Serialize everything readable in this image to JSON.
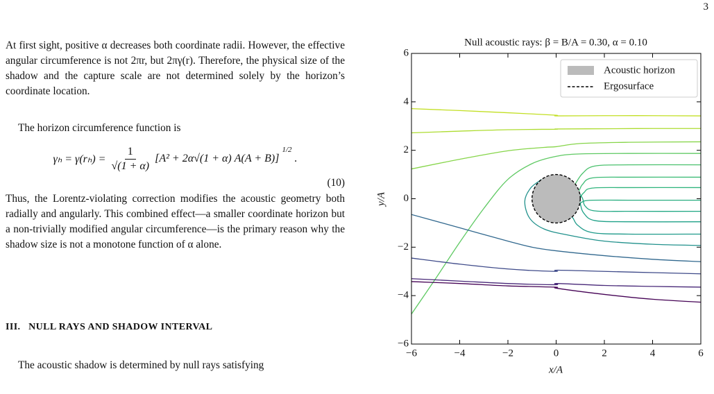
{
  "page_number": "3",
  "body": {
    "p1": "At first sight, positive α decreases both coordinate radii. However, the effective angular circumference is not 2πr, but 2πγ(r). Therefore, the physical size of the shadow and the capture scale are not determined solely by the horizon’s coordinate location.",
    "p2": "The horizon circumference function is",
    "equation": {
      "lhs": "γₕ = γ(rₕ) =",
      "numerator": "1",
      "denominator": "√(1 + α)",
      "body": "[A² + 2α√(1 + α) A(A + B)]",
      "exponent": "1/2",
      "end": ".",
      "number": "(10)"
    },
    "p3": "Thus, the Lorentz-violating correction modifies the acoustic geometry both radially and angularly. This combined effect—a smaller coordinate horizon but a non-trivially modified angular circumference—is the primary reason why the shadow size is not a monotone function of α alone.",
    "section_number": "III.",
    "section_title": "NULL RAYS AND SHADOW INTERVAL",
    "p4": "The acoustic shadow is determined by null rays satisfying"
  },
  "chart_data": {
    "type": "line",
    "title": "Null acoustic rays: β = B/A = 0.30, α = 0.10",
    "x_label": "x/A",
    "y_label": "y/A",
    "xlim": [
      -6,
      6
    ],
    "ylim": [
      -6,
      6
    ],
    "xticks": [
      {
        "value": -6,
        "label": "−6"
      },
      {
        "value": -4,
        "label": "−4"
      },
      {
        "value": -2,
        "label": "−2"
      },
      0,
      2,
      4,
      6
    ],
    "yticks": [
      {
        "value": -6,
        "label": "−6"
      },
      {
        "value": -4,
        "label": "−4"
      },
      {
        "value": -2,
        "label": "−2"
      },
      0,
      2,
      4,
      6
    ],
    "legend": "upper right",
    "horizon": {
      "label": "Acoustic horizon",
      "radius": 1.0,
      "color": "#bbbbbb"
    },
    "ergosurface": {
      "label": "Ergosurface",
      "radius": 1.0,
      "color": "#000000"
    },
    "series": [
      {
        "color": "#c2df23",
        "x": [
          -6,
          -4,
          -2,
          -0.05,
          0.05,
          2,
          4,
          6
        ],
        "values": [
          3.72,
          3.64,
          3.55,
          3.45,
          3.42,
          3.43,
          3.43,
          3.42
        ]
      },
      {
        "color": "#addc30",
        "x": [
          -6,
          -4,
          -2,
          -0.05,
          0.05,
          2,
          4,
          6
        ],
        "values": [
          2.72,
          2.79,
          2.85,
          2.87,
          2.88,
          2.89,
          2.9,
          2.9
        ]
      },
      {
        "color": "#86d549",
        "x": [
          -6,
          -4,
          -2,
          -0.5,
          0,
          1,
          3,
          6
        ],
        "values": [
          1.23,
          1.63,
          1.98,
          2.12,
          2.15,
          2.28,
          2.33,
          2.35
        ]
      },
      {
        "color": "#5ec962",
        "x": [
          -6,
          -5,
          -4,
          -3,
          -2,
          -1,
          0,
          1,
          3,
          6
        ],
        "values": [
          -4.76,
          -3.3,
          -1.8,
          -0.4,
          0.8,
          1.45,
          1.75,
          1.85,
          1.87,
          1.87
        ]
      },
      {
        "color": "#4ac16d",
        "x": [
          6,
          3,
          1.6,
          1.1,
          0.8
        ],
        "values": [
          1.4,
          1.4,
          1.35,
          1.05,
          0.62
        ]
      },
      {
        "color": "#3bbb75",
        "x": [
          6,
          3,
          1.5,
          1.1,
          0.95
        ],
        "values": [
          0.89,
          0.89,
          0.86,
          0.6,
          0.32
        ]
      },
      {
        "color": "#2fb47c",
        "x": [
          6,
          3,
          1.5,
          1.15,
          1.0
        ],
        "values": [
          0.46,
          0.46,
          0.44,
          0.25,
          0.05
        ]
      },
      {
        "color": "#28ae80",
        "x": [
          6,
          3,
          1.5,
          1.15,
          0.98
        ],
        "values": [
          -0.06,
          -0.06,
          -0.06,
          -0.1,
          -0.2
        ]
      },
      {
        "color": "#22a884",
        "x": [
          6,
          3,
          1.6,
          1.2,
          1.1,
          0.92
        ],
        "values": [
          -0.52,
          -0.52,
          -0.5,
          -0.3,
          0,
          0.3
        ]
      },
      {
        "color": "#1fa188",
        "x": [
          6,
          3,
          1.6,
          1.15,
          1.0,
          0.85
        ],
        "values": [
          -0.95,
          -0.95,
          -0.9,
          -0.6,
          -0.2,
          0.45
        ]
      },
      {
        "color": "#1f9a8a",
        "x": [
          6,
          3,
          1.5,
          0.9,
          0.7,
          0.6
        ],
        "values": [
          -1.46,
          -1.46,
          -1.4,
          -1.1,
          -0.8,
          -0.75
        ]
      },
      {
        "color": "#21918c",
        "x": [
          6,
          4,
          2,
          0.5,
          -0.5,
          -1.1,
          -1.3,
          -1.05,
          -0.6
        ],
        "values": [
          -1.93,
          -1.88,
          -1.75,
          -1.5,
          -1.25,
          -0.8,
          -0.1,
          0.45,
          0.8
        ]
      },
      {
        "color": "#31688e",
        "x": [
          -6,
          -4,
          -2,
          -1,
          0,
          2,
          4,
          6
        ],
        "values": [
          -0.65,
          -1.2,
          -1.75,
          -2.0,
          -2.15,
          -2.35,
          -2.5,
          -2.6
        ]
      },
      {
        "color": "#3e4a89",
        "x": [
          -6,
          -4,
          -2,
          -0.05,
          0.05,
          2,
          4,
          6
        ],
        "values": [
          -2.45,
          -2.7,
          -2.9,
          -3.0,
          -2.95,
          -3.0,
          -3.05,
          -3.1
        ]
      },
      {
        "color": "#482878",
        "x": [
          -6,
          -4,
          -2,
          -0.05,
          0.05,
          2,
          4,
          6
        ],
        "values": [
          -3.3,
          -3.4,
          -3.5,
          -3.55,
          -3.5,
          -3.58,
          -3.62,
          -3.65
        ]
      },
      {
        "color": "#440154",
        "x": [
          -6,
          -4,
          -2,
          -0.05,
          0.05,
          2,
          4,
          6
        ],
        "values": [
          -3.42,
          -3.5,
          -3.6,
          -3.65,
          -3.7,
          -3.95,
          -4.15,
          -4.27
        ]
      }
    ]
  }
}
